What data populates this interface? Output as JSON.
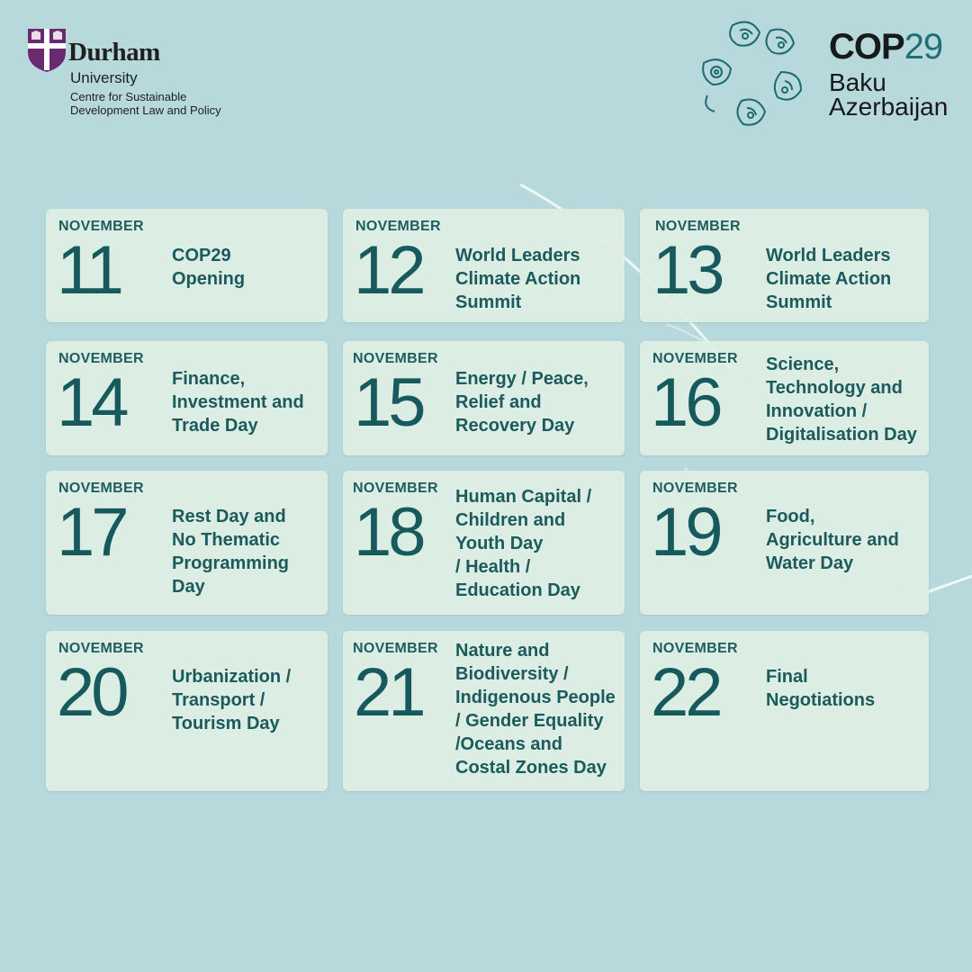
{
  "durham": {
    "name": "Durham",
    "university": "University",
    "centre": "Centre for Sustainable\nDevelopment Law and Policy"
  },
  "cop": {
    "cop": "COP",
    "number": "29",
    "city": "Baku",
    "country": "Azerbaijan"
  },
  "colors": {
    "background": "#b7d9dc",
    "card": "#deefe4",
    "text": "#1b5a5d",
    "durham_purple": "#6a2a6f",
    "cop_teal": "#1c7177"
  },
  "cards": [
    {
      "month": "NOVEMBER",
      "day": "11",
      "theme": "COP29\nOpening"
    },
    {
      "month": "NOVEMBER",
      "day": "12",
      "theme": "World Leaders\nClimate Action\nSummit"
    },
    {
      "month": "NOVEMBER",
      "day": "13",
      "theme": "World Leaders\nClimate Action\nSummit"
    },
    {
      "month": "NOVEMBER",
      "day": "14",
      "theme": "Finance,\nInvestment and\nTrade Day"
    },
    {
      "month": "NOVEMBER",
      "day": "15",
      "theme": "Energy / Peace,\nRelief and\nRecovery Day"
    },
    {
      "month": "NOVEMBER",
      "day": "16",
      "theme": "Science,\nTechnology and\nInnovation /\nDigitalisation Day"
    },
    {
      "month": "NOVEMBER",
      "day": "17",
      "theme": "Rest Day and\nNo Thematic\nProgramming\nDay"
    },
    {
      "month": "NOVEMBER",
      "day": "18",
      "theme": "Human Capital /\nChildren and\nYouth Day\n/ Health /\nEducation Day"
    },
    {
      "month": "NOVEMBER",
      "day": "19",
      "theme": "Food,\nAgriculture and\nWater Day"
    },
    {
      "month": "NOVEMBER",
      "day": "20",
      "theme": "Urbanization /\nTransport /\nTourism Day"
    },
    {
      "month": "NOVEMBER",
      "day": "21",
      "theme": "Nature and\nBiodiversity /\nIndigenous People\n/ Gender Equality\n/Oceans and\nCostal Zones Day"
    },
    {
      "month": "NOVEMBER",
      "day": "22",
      "theme": "Final\nNegotiations"
    }
  ]
}
